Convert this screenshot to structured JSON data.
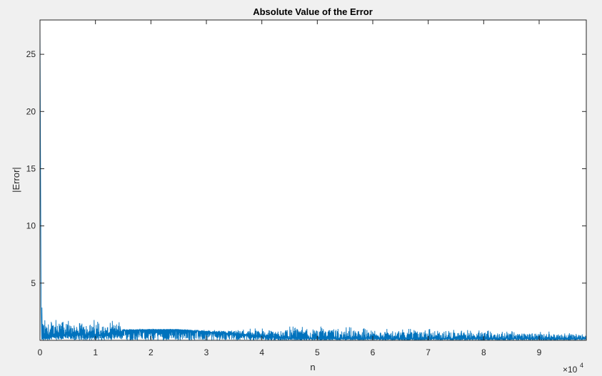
{
  "window": {
    "background_color": "#f0f0f0"
  },
  "chart_data": {
    "type": "line",
    "title": "Absolute Value of the Error",
    "xlabel": "n",
    "ylabel": "|Error|",
    "x_exponent_label": "×10",
    "x_exponent_power": "4",
    "x_scale_factor": 10000,
    "xlim": [
      0,
      98500
    ],
    "ylim": [
      0,
      28
    ],
    "x_ticks": [
      0,
      1,
      2,
      3,
      4,
      5,
      6,
      7,
      8,
      9
    ],
    "x_tick_labels": [
      "0",
      "1",
      "2",
      "3",
      "4",
      "5",
      "6",
      "7",
      "8",
      "9"
    ],
    "y_ticks": [
      5,
      10,
      15,
      20,
      25
    ],
    "y_tick_labels": [
      "5",
      "10",
      "15",
      "20",
      "25"
    ],
    "grid": false,
    "line_color": "#0072bd",
    "series": [
      {
        "x": [
          0,
          300,
          1000,
          2000,
          3000,
          4000,
          5000,
          6000,
          7000,
          8000,
          10000,
          12000,
          14000,
          14500,
          15000,
          20000,
          25000,
          30000,
          35000,
          40000,
          45000,
          50000,
          55000,
          60000,
          65000,
          70000,
          75000,
          80000,
          85000,
          90000,
          95000,
          98500
        ],
        "y": [
          28,
          3.0,
          1.6,
          2.3,
          1.7,
          2.2,
          1.9,
          1.7,
          2.0,
          1.8,
          1.8,
          1.6,
          1.8,
          1.6,
          1.0,
          1.0,
          1.0,
          0.9,
          0.9,
          1.1,
          1.2,
          1.2,
          1.2,
          1.0,
          1.0,
          1.0,
          0.9,
          0.9,
          0.8,
          0.8,
          0.7,
          0.6
        ],
        "y_floor": [
          0,
          0.1,
          0.3,
          0.4,
          0.5,
          0.5,
          0.5,
          0.5,
          0.5,
          0.5,
          0.5,
          0.5,
          0.6,
          0.6,
          0.9,
          0.95,
          0.95,
          0.75,
          0.6,
          0.35,
          0.2,
          0.15,
          0.15,
          0.15,
          0.15,
          0.15,
          0.15,
          0.15,
          0.15,
          0.15,
          0.15,
          0.15
        ]
      }
    ]
  }
}
